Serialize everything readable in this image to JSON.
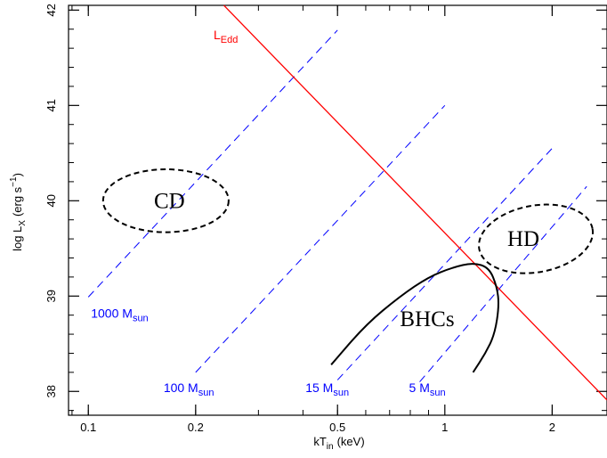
{
  "chart_data": {
    "type": "line",
    "xlabel_main": "kT",
    "xlabel_sub": "in",
    "xlabel_unit": "(keV)",
    "ylabel_main": "log L",
    "ylabel_sub": "X",
    "ylabel_unit": "(erg s",
    "ylabel_sup": "−1",
    "ylabel_close": ")",
    "x_scale": "log",
    "xlim": [
      0.088,
      2.85
    ],
    "ylim": [
      37.75,
      42.05
    ],
    "x_ticks": [
      {
        "value": 0.1,
        "label": "0.1"
      },
      {
        "value": 0.2,
        "label": "0.2"
      },
      {
        "value": 0.5,
        "label": "0.5"
      },
      {
        "value": 1,
        "label": "1"
      },
      {
        "value": 2,
        "label": "2"
      }
    ],
    "y_ticks": [
      {
        "value": 38,
        "label": "38"
      },
      {
        "value": 39,
        "label": "39"
      },
      {
        "value": 40,
        "label": "40"
      },
      {
        "value": 41,
        "label": "41"
      },
      {
        "value": 42,
        "label": "42"
      }
    ],
    "eddington_line": {
      "label_main": "L",
      "label_sub": "Edd",
      "color": "#ff0000",
      "x": [
        0.24,
        2.85
      ],
      "y": [
        42.05,
        37.91
      ]
    },
    "mass_lines": [
      {
        "label_main": "1000 M",
        "label_sub": "sun",
        "x": [
          0.1,
          0.5
        ],
        "y": [
          38.99,
          41.79
        ]
      },
      {
        "label_main": "100 M",
        "label_sub": "sun",
        "x": [
          0.2,
          1.0
        ],
        "y": [
          38.2,
          41.0
        ]
      },
      {
        "label_main": "15 M",
        "label_sub": "sun",
        "x": [
          0.5,
          2.0
        ],
        "y": [
          38.12,
          40.55
        ]
      },
      {
        "label_main": "5 M",
        "label_sub": "sun",
        "x": [
          0.85,
          2.5
        ],
        "y": [
          38.1,
          40.15
        ]
      }
    ],
    "mass_line_color": "#0000ff",
    "regions": [
      {
        "label": "CD",
        "center_x": 0.165,
        "center_y": 40.0,
        "width_factor": 1.5,
        "height": 0.66
      },
      {
        "label": "HD",
        "center_x": 1.8,
        "center_y": 39.6,
        "width_factor": 1.45,
        "height": 0.7
      }
    ],
    "bhc_label": "BHCs",
    "bhc_curve": {
      "x": [
        0.48,
        0.6,
        0.75,
        0.9,
        1.05,
        1.2,
        1.33,
        1.4,
        1.42,
        1.38,
        1.3,
        1.2
      ],
      "y": [
        38.28,
        38.7,
        39.0,
        39.2,
        39.3,
        39.35,
        39.3,
        39.1,
        38.9,
        38.6,
        38.4,
        38.2
      ]
    }
  }
}
